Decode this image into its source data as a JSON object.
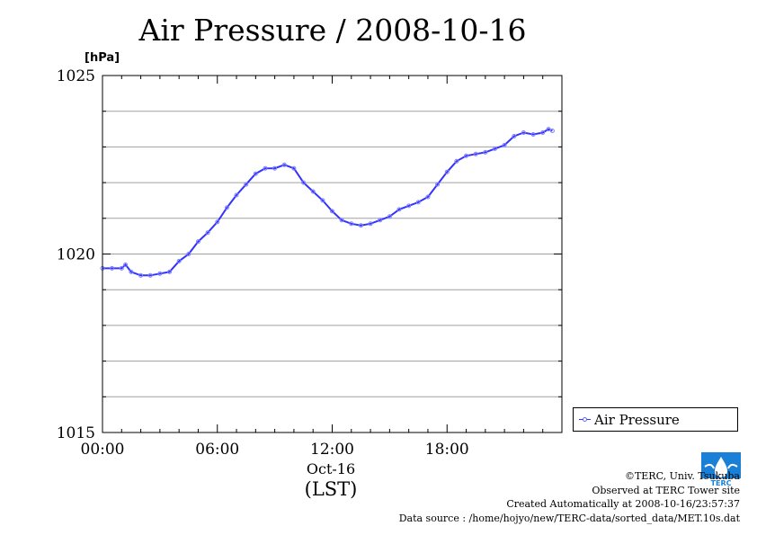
{
  "title": "Air Pressure / 2008-10-16",
  "yunit": "[hPa]",
  "date_label": "Oct-16",
  "timezone_label": "(LST)",
  "legend_label": "Air Pressure",
  "credits": {
    "copyright": "©TERC, Univ. Tsukuba",
    "site": "Observed at TERC Tower site",
    "created": "Created Automatically at 2008-10-16/23:57:37",
    "source": "Data source : /home/hojyo/new/TERC-data/sorted_data/MET.10s.dat"
  },
  "logo_text": "TERC",
  "colors": {
    "series": "#3333ff",
    "markers": "#8080ff",
    "grid": "#a0a0a0",
    "logo": "#1a7fd6"
  },
  "chart_data": {
    "type": "line",
    "title": "Air Pressure / 2008-10-16",
    "ylabel": "[hPa]",
    "xlabel": "(LST)",
    "ylim": [
      1015,
      1025
    ],
    "xlim": [
      0,
      24
    ],
    "x_ticks": [
      {
        "x": 0,
        "label": "00:00"
      },
      {
        "x": 6,
        "label": "06:00"
      },
      {
        "x": 12,
        "label": "12:00"
      },
      {
        "x": 18,
        "label": "18:00"
      }
    ],
    "y_ticks": [
      {
        "y": 1015,
        "label": "1015"
      },
      {
        "y": 1020,
        "label": "1020"
      },
      {
        "y": 1025,
        "label": "1025"
      }
    ],
    "y_minor_grid_step": 1,
    "grid": true,
    "legend_position": "right",
    "series": [
      {
        "name": "Air Pressure",
        "points": [
          [
            0.0,
            1019.6
          ],
          [
            0.5,
            1019.6
          ],
          [
            1.0,
            1019.6
          ],
          [
            1.2,
            1019.7
          ],
          [
            1.5,
            1019.5
          ],
          [
            2.0,
            1019.4
          ],
          [
            2.5,
            1019.4
          ],
          [
            3.0,
            1019.45
          ],
          [
            3.5,
            1019.5
          ],
          [
            4.0,
            1019.8
          ],
          [
            4.5,
            1020.0
          ],
          [
            5.0,
            1020.35
          ],
          [
            5.5,
            1020.6
          ],
          [
            6.0,
            1020.9
          ],
          [
            6.5,
            1021.3
          ],
          [
            7.0,
            1021.65
          ],
          [
            7.5,
            1021.95
          ],
          [
            8.0,
            1022.25
          ],
          [
            8.5,
            1022.4
          ],
          [
            9.0,
            1022.4
          ],
          [
            9.5,
            1022.5
          ],
          [
            10.0,
            1022.4
          ],
          [
            10.5,
            1022.0
          ],
          [
            11.0,
            1021.75
          ],
          [
            11.5,
            1021.5
          ],
          [
            12.0,
            1021.2
          ],
          [
            12.5,
            1020.95
          ],
          [
            13.0,
            1020.85
          ],
          [
            13.5,
            1020.8
          ],
          [
            14.0,
            1020.85
          ],
          [
            14.5,
            1020.95
          ],
          [
            15.0,
            1021.05
          ],
          [
            15.5,
            1021.25
          ],
          [
            16.0,
            1021.35
          ],
          [
            16.5,
            1021.45
          ],
          [
            17.0,
            1021.6
          ],
          [
            17.5,
            1021.95
          ],
          [
            18.0,
            1022.3
          ],
          [
            18.5,
            1022.6
          ],
          [
            19.0,
            1022.75
          ],
          [
            19.5,
            1022.8
          ],
          [
            20.0,
            1022.85
          ],
          [
            20.5,
            1022.95
          ],
          [
            21.0,
            1023.05
          ],
          [
            21.5,
            1023.3
          ],
          [
            22.0,
            1023.4
          ],
          [
            22.5,
            1023.35
          ],
          [
            23.0,
            1023.4
          ],
          [
            23.3,
            1023.5
          ],
          [
            23.5,
            1023.45
          ]
        ]
      }
    ]
  }
}
